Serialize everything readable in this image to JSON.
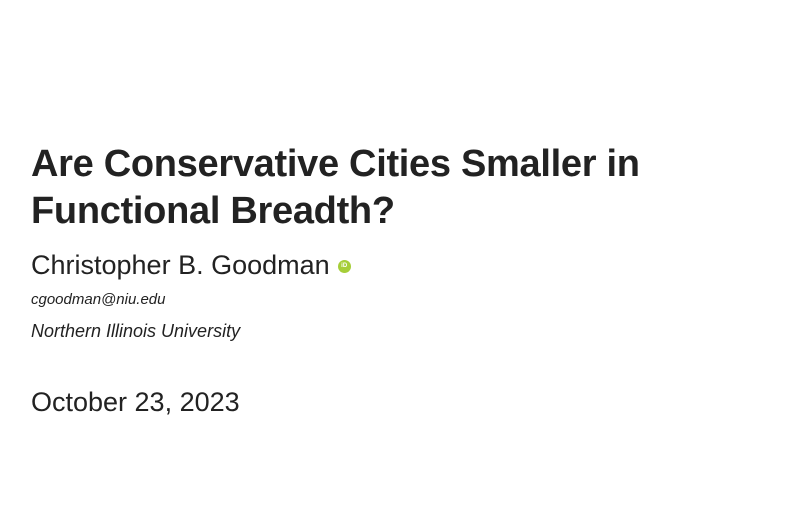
{
  "title": "Are Conservative Cities Smaller in Functional Breadth?",
  "author": {
    "name": "Christopher B. Goodman",
    "orcid_icon": "orcid-icon",
    "orcid_color": "#a6ce39",
    "orcid_glyph": "iD",
    "email": "cgoodman@niu.edu",
    "affiliation": "Northern Illinois University"
  },
  "date": "October 23, 2023"
}
